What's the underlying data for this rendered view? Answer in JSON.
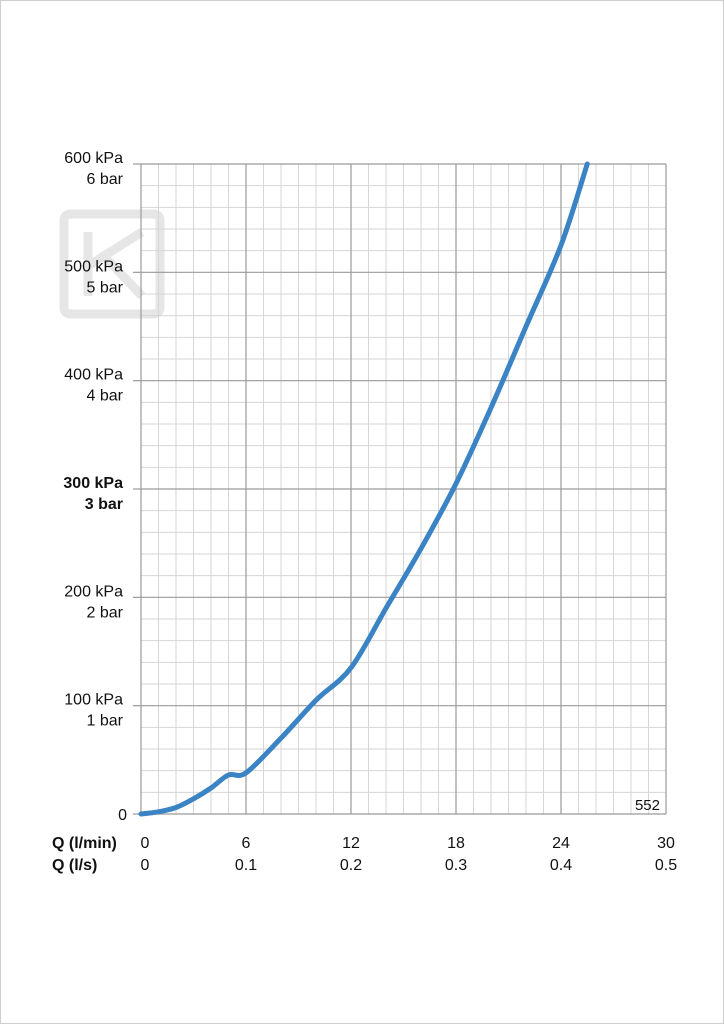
{
  "chart_data": {
    "type": "line",
    "title": "",
    "xlabel": "",
    "ylabel": "",
    "x_axes": [
      {
        "label": "Q (l/min)",
        "ticks": [
          "0",
          "6",
          "12",
          "18",
          "24",
          "30"
        ]
      },
      {
        "label": "Q (l/s)",
        "ticks": [
          "0",
          "0.1",
          "0.2",
          "0.3",
          "0.4",
          "0.5"
        ]
      }
    ],
    "y_ticks": [
      {
        "value": 0,
        "lines": [
          "0"
        ],
        "bold": false
      },
      {
        "value": 100,
        "lines": [
          "100 kPa",
          "1 bar"
        ],
        "bold": false
      },
      {
        "value": 200,
        "lines": [
          "200 kPa",
          "2 bar"
        ],
        "bold": false
      },
      {
        "value": 300,
        "lines": [
          "300 kPa",
          "3 bar"
        ],
        "bold": true
      },
      {
        "value": 400,
        "lines": [
          "400 kPa",
          "4 bar"
        ],
        "bold": false
      },
      {
        "value": 500,
        "lines": [
          "500 kPa",
          "5 bar"
        ],
        "bold": false
      },
      {
        "value": 600,
        "lines": [
          "600 kPa",
          "6 bar"
        ],
        "bold": false
      }
    ],
    "xlim": [
      0,
      30
    ],
    "ylim": [
      0,
      600
    ],
    "grid": true,
    "series": [
      {
        "color": "#3a83c4",
        "x": [
          0,
          1,
          2,
          3,
          4,
          5,
          6,
          8,
          10,
          12,
          14,
          16,
          18,
          20,
          22,
          24,
          25.5
        ],
        "y": [
          0,
          2,
          6,
          14,
          24,
          36,
          38,
          70,
          105,
          135,
          190,
          245,
          305,
          375,
          450,
          525,
          600
        ]
      }
    ],
    "annotation": "552",
    "watermark_color": "#e6e6e6"
  }
}
